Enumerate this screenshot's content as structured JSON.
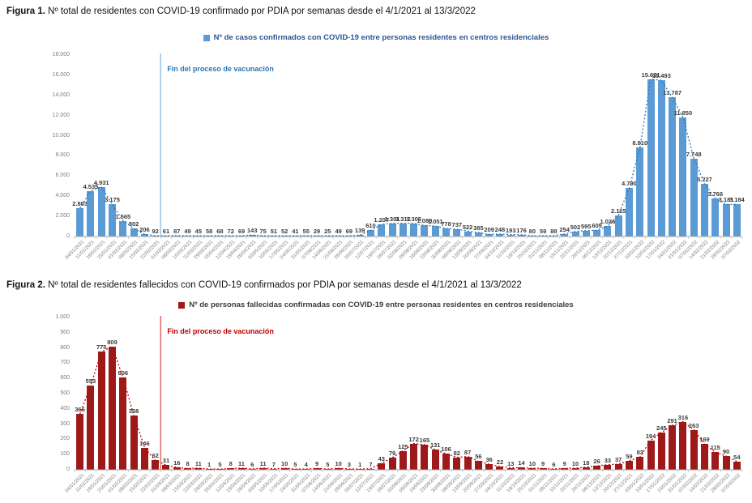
{
  "chart_data": [
    {
      "id": "figura1",
      "type": "bar",
      "title_bold": "Figura 1.",
      "title_rest": " Nº total de residentes con COVID-19 confirmado por PDIA por semanas desde el 4/1/2021 al 13/3/2022",
      "legend": "Nº de casos confirmados con COVID-19 entre personas residentes en centros residenciales",
      "annotation": {
        "text": "Fin del proceso de vacunación",
        "line_index": 8
      },
      "ylim": [
        0,
        18000
      ],
      "yticks": [
        0,
        2000,
        4000,
        6000,
        8000,
        10000,
        12000,
        14000,
        16000,
        18000
      ],
      "grid": false,
      "legend_position": "top-center",
      "xlabel": "",
      "ylabel": "",
      "bar_color": "#5B9BD5",
      "trend_color": "#2E75B6",
      "vline_color": "#9DC3E6",
      "annotation_color": "#2E75B6",
      "legend_text_color": "#2F5496",
      "categories": [
        "04/01/2021",
        "11/01/2021",
        "18/01/2021",
        "25/01/2021",
        "01/02/2021",
        "08/02/2021",
        "15/02/2021",
        "22/02/2021",
        "01/03/2021",
        "08/03/2021",
        "15/03/2021",
        "22/03/2021",
        "29/03/2021",
        "05/04/2021",
        "12/04/2021",
        "19/04/2021",
        "26/04/2021",
        "03/05/2021",
        "10/05/2021",
        "17/05/2021",
        "24/05/2021",
        "31/05/2021",
        "07/06/2021",
        "14/06/2021",
        "21/06/2021",
        "28/06/2021",
        "05/07/2021",
        "12/07/2021",
        "19/07/2021",
        "26/07/2021",
        "02/08/2021",
        "09/08/2021",
        "16/08/2021",
        "23/08/2021",
        "30/08/2021",
        "06/09/2021",
        "13/09/2021",
        "20/09/2021",
        "27/09/2021",
        "04/10/2021",
        "11/10/2021",
        "18/10/2021",
        "25/10/2021",
        "01/11/2021",
        "08/11/2021",
        "15/11/2021",
        "22/11/2021",
        "29/11/2021",
        "06/12/2021",
        "13/12/2021",
        "20/12/2021",
        "27/12/2021",
        "03/01/2022",
        "10/01/2022",
        "17/01/2022",
        "24/01/2022",
        "31/01/2022",
        "07/02/2022",
        "14/02/2022",
        "21/02/2022",
        "28/02/2022",
        "07/03/2022"
      ],
      "values": [
        2803,
        4535,
        4931,
        3175,
        1565,
        802,
        206,
        92,
        61,
        87,
        49,
        45,
        58,
        68,
        72,
        69,
        143,
        75,
        51,
        52,
        41,
        55,
        29,
        25,
        49,
        69,
        139,
        610,
        1207,
        1301,
        1312,
        1305,
        1089,
        1051,
        778,
        737,
        522,
        385,
        209,
        248,
        193,
        176,
        80,
        59,
        88,
        254,
        502,
        595,
        609,
        1026,
        2115,
        4790,
        8810,
        15621,
        15493,
        13787,
        11850,
        7748,
        5227,
        3766,
        3181,
        3184
      ]
    },
    {
      "id": "figura2",
      "type": "bar",
      "title_bold": "Figura 2.",
      "title_rest": " Nº total de residentes fallecidos con COVID-19 confirmados por PDIA por semanas desde el 4/1/2021 al 13/3/2022",
      "legend": "Nº de personas fallecidas confirmadas con COVID-19 entre personas residentes en centros residenciales",
      "annotation": {
        "text": "Fin del proceso de vacunación",
        "line_index": 8
      },
      "ylim": [
        0,
        1000
      ],
      "yticks": [
        0,
        100,
        200,
        300,
        400,
        500,
        600,
        700,
        800,
        900,
        1000
      ],
      "grid": false,
      "legend_position": "top-center",
      "xlabel": "",
      "ylabel": "",
      "bar_color": "#9E1A1A",
      "trend_color": "#C00000",
      "vline_color": "#E06666",
      "annotation_color": "#C00000",
      "legend_text_color": "#3B3B3B",
      "categories": [
        "04/01/2021",
        "11/01/2021",
        "18/01/2021",
        "25/01/2021",
        "01/02/2021",
        "08/02/2021",
        "15/02/2021",
        "22/02/2021",
        "01/03/2021",
        "08/03/2021",
        "15/03/2021",
        "22/03/2021",
        "29/03/2021",
        "05/04/2021",
        "12/04/2021",
        "19/04/2021",
        "26/04/2021",
        "03/05/2021",
        "10/05/2021",
        "17/05/2021",
        "24/05/2021",
        "31/05/2021",
        "07/06/2021",
        "14/06/2021",
        "21/06/2021",
        "28/06/2021",
        "05/07/2021",
        "12/07/2021",
        "19/07/2021",
        "26/07/2021",
        "02/08/2021",
        "09/08/2021",
        "16/08/2021",
        "23/08/2021",
        "30/08/2021",
        "06/09/2021",
        "13/09/2021",
        "20/09/2021",
        "27/09/2021",
        "04/10/2021",
        "11/10/2021",
        "18/10/2021",
        "25/10/2021",
        "01/11/2021",
        "08/11/2021",
        "15/11/2021",
        "22/11/2021",
        "29/11/2021",
        "06/12/2021",
        "13/12/2021",
        "20/12/2021",
        "27/12/2021",
        "03/01/2022",
        "10/01/2022",
        "17/01/2022",
        "24/01/2022",
        "31/01/2022",
        "07/02/2022",
        "14/02/2022",
        "21/02/2022",
        "28/02/2022",
        "07/03/2022"
      ],
      "values": [
        366,
        553,
        775,
        809,
        606,
        358,
        146,
        62,
        31,
        16,
        8,
        11,
        1,
        5,
        8,
        11,
        6,
        11,
        7,
        10,
        5,
        4,
        9,
        5,
        10,
        3,
        1,
        7,
        43,
        79,
        125,
        172,
        165,
        131,
        106,
        82,
        87,
        56,
        36,
        22,
        13,
        14,
        10,
        9,
        6,
        9,
        10,
        18,
        26,
        33,
        37,
        59,
        83,
        194,
        245,
        291,
        316,
        263,
        169,
        115,
        90,
        54
      ]
    }
  ]
}
